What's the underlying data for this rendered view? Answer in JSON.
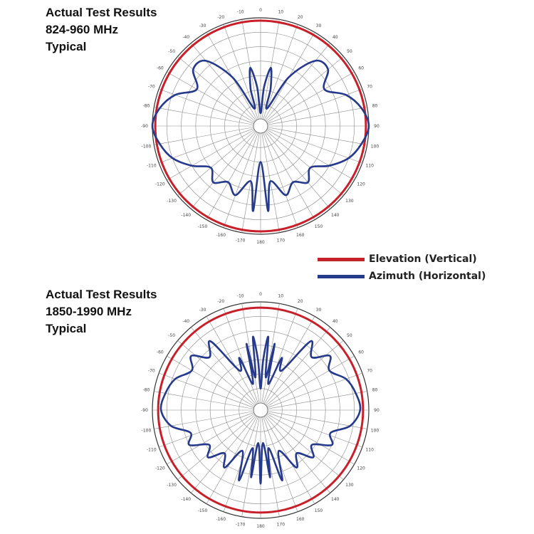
{
  "chart_data": [
    {
      "type": "polar-line",
      "title_lines": [
        "Actual Test Results",
        "824-960 MHz",
        "Typical"
      ],
      "angular_ticks": [
        0,
        10,
        20,
        30,
        40,
        50,
        60,
        70,
        80,
        90,
        100,
        110,
        120,
        130,
        140,
        150,
        160,
        170,
        180,
        -170,
        -160,
        -150,
        -140,
        -130,
        -120,
        -110,
        -100,
        -90,
        -80,
        -70,
        -60,
        -50,
        -40,
        -30,
        -20,
        -10
      ],
      "radial_range": [
        -35,
        0
      ],
      "grid": true,
      "legend_position": "right",
      "series": [
        {
          "name": "Elevation (Vertical)",
          "color": "#c8202a",
          "points": [
            {
              "angle": 0,
              "r": -1
            },
            {
              "angle": 90,
              "r": -1
            },
            {
              "angle": 180,
              "r": -1
            },
            {
              "angle": -90,
              "r": -1
            }
          ]
        },
        {
          "name": "Azimuth (Horizontal)",
          "color": "#263a8c",
          "points": [
            {
              "angle": 0,
              "r": -33
            },
            {
              "angle": 5,
              "r": -24
            },
            {
              "angle": 10,
              "r": -17
            },
            {
              "angle": 15,
              "r": -24
            },
            {
              "angle": 20,
              "r": -31
            },
            {
              "angle": 30,
              "r": -18
            },
            {
              "angle": 40,
              "r": -8
            },
            {
              "angle": 50,
              "r": -7
            },
            {
              "angle": 60,
              "r": -12
            },
            {
              "angle": 70,
              "r": -6
            },
            {
              "angle": 80,
              "r": -2
            },
            {
              "angle": 90,
              "r": 0
            },
            {
              "angle": 100,
              "r": -2
            },
            {
              "angle": 110,
              "r": -5
            },
            {
              "angle": 120,
              "r": -10
            },
            {
              "angle": 130,
              "r": -15
            },
            {
              "angle": 140,
              "r": -12
            },
            {
              "angle": 150,
              "r": -15
            },
            {
              "angle": 160,
              "r": -12
            },
            {
              "angle": 170,
              "r": -18
            },
            {
              "angle": 175,
              "r": -8
            },
            {
              "angle": 180,
              "r": -25
            },
            {
              "angle": -175,
              "r": -8
            },
            {
              "angle": -170,
              "r": -18
            },
            {
              "angle": -160,
              "r": -12
            },
            {
              "angle": -150,
              "r": -15
            },
            {
              "angle": -140,
              "r": -12
            },
            {
              "angle": -130,
              "r": -15
            },
            {
              "angle": -120,
              "r": -10
            },
            {
              "angle": -110,
              "r": -5
            },
            {
              "angle": -100,
              "r": -2
            },
            {
              "angle": -90,
              "r": 0
            },
            {
              "angle": -80,
              "r": -2
            },
            {
              "angle": -70,
              "r": -6
            },
            {
              "angle": -60,
              "r": -12
            },
            {
              "angle": -50,
              "r": -7
            },
            {
              "angle": -40,
              "r": -8
            },
            {
              "angle": -30,
              "r": -18
            },
            {
              "angle": -20,
              "r": -31
            },
            {
              "angle": -15,
              "r": -24
            },
            {
              "angle": -10,
              "r": -17
            },
            {
              "angle": -5,
              "r": -24
            }
          ]
        }
      ]
    },
    {
      "type": "polar-line",
      "title_lines": [
        "Actual Test Results",
        "1850-1990 MHz",
        "Typical"
      ],
      "angular_ticks": [
        0,
        10,
        20,
        30,
        40,
        50,
        60,
        70,
        80,
        90,
        100,
        110,
        120,
        130,
        140,
        150,
        160,
        170,
        180,
        -170,
        -160,
        -150,
        -140,
        -130,
        -120,
        -110,
        -100,
        -90,
        -80,
        -70,
        -60,
        -50,
        -40,
        -30,
        -20,
        -10
      ],
      "radial_range": [
        -35,
        0
      ],
      "grid": true,
      "series": [
        {
          "name": "Elevation (Vertical)",
          "color": "#c8202a",
          "points": [
            {
              "angle": 0,
              "r": -2
            },
            {
              "angle": 90,
              "r": -2
            },
            {
              "angle": 180,
              "r": -2
            },
            {
              "angle": -90,
              "r": -2
            }
          ]
        },
        {
          "name": "Azimuth (Horizontal)",
          "color": "#263a8c",
          "points": [
            {
              "angle": 0,
              "r": -30
            },
            {
              "angle": 3,
              "r": -20
            },
            {
              "angle": 6,
              "r": -12
            },
            {
              "angle": 9,
              "r": -26
            },
            {
              "angle": 12,
              "r": -14
            },
            {
              "angle": 16,
              "r": -28
            },
            {
              "angle": 22,
              "r": -18
            },
            {
              "angle": 28,
              "r": -22
            },
            {
              "angle": 36,
              "r": -8
            },
            {
              "angle": 44,
              "r": -12
            },
            {
              "angle": 52,
              "r": -7
            },
            {
              "angle": 60,
              "r": -10
            },
            {
              "angle": 70,
              "r": -6
            },
            {
              "angle": 80,
              "r": -4
            },
            {
              "angle": 90,
              "r": -3
            },
            {
              "angle": 100,
              "r": -6
            },
            {
              "angle": 108,
              "r": -12
            },
            {
              "angle": 116,
              "r": -10
            },
            {
              "angle": 124,
              "r": -16
            },
            {
              "angle": 132,
              "r": -13
            },
            {
              "angle": 140,
              "r": -18
            },
            {
              "angle": 148,
              "r": -14
            },
            {
              "angle": 156,
              "r": -22
            },
            {
              "angle": 163,
              "r": -12
            },
            {
              "angle": 168,
              "r": -24
            },
            {
              "angle": 172,
              "r": -14
            },
            {
              "angle": 176,
              "r": -26
            },
            {
              "angle": 180,
              "r": -12
            },
            {
              "angle": -176,
              "r": -26
            },
            {
              "angle": -172,
              "r": -14
            },
            {
              "angle": -168,
              "r": -24
            },
            {
              "angle": -163,
              "r": -12
            },
            {
              "angle": -156,
              "r": -22
            },
            {
              "angle": -148,
              "r": -14
            },
            {
              "angle": -140,
              "r": -18
            },
            {
              "angle": -132,
              "r": -13
            },
            {
              "angle": -124,
              "r": -16
            },
            {
              "angle": -116,
              "r": -10
            },
            {
              "angle": -108,
              "r": -12
            },
            {
              "angle": -100,
              "r": -6
            },
            {
              "angle": -90,
              "r": -3
            },
            {
              "angle": -80,
              "r": -4
            },
            {
              "angle": -70,
              "r": -6
            },
            {
              "angle": -60,
              "r": -10
            },
            {
              "angle": -52,
              "r": -7
            },
            {
              "angle": -44,
              "r": -12
            },
            {
              "angle": -36,
              "r": -8
            },
            {
              "angle": -28,
              "r": -22
            },
            {
              "angle": -22,
              "r": -18
            },
            {
              "angle": -16,
              "r": -28
            },
            {
              "angle": -12,
              "r": -14
            },
            {
              "angle": -9,
              "r": -26
            },
            {
              "angle": -6,
              "r": -12
            },
            {
              "angle": -3,
              "r": -20
            }
          ]
        }
      ]
    }
  ],
  "legend": {
    "items": [
      {
        "label": "Elevation (Vertical)",
        "color": "#c8202a"
      },
      {
        "label": "Azimuth (Horizontal)",
        "color": "#263a8c"
      }
    ]
  }
}
